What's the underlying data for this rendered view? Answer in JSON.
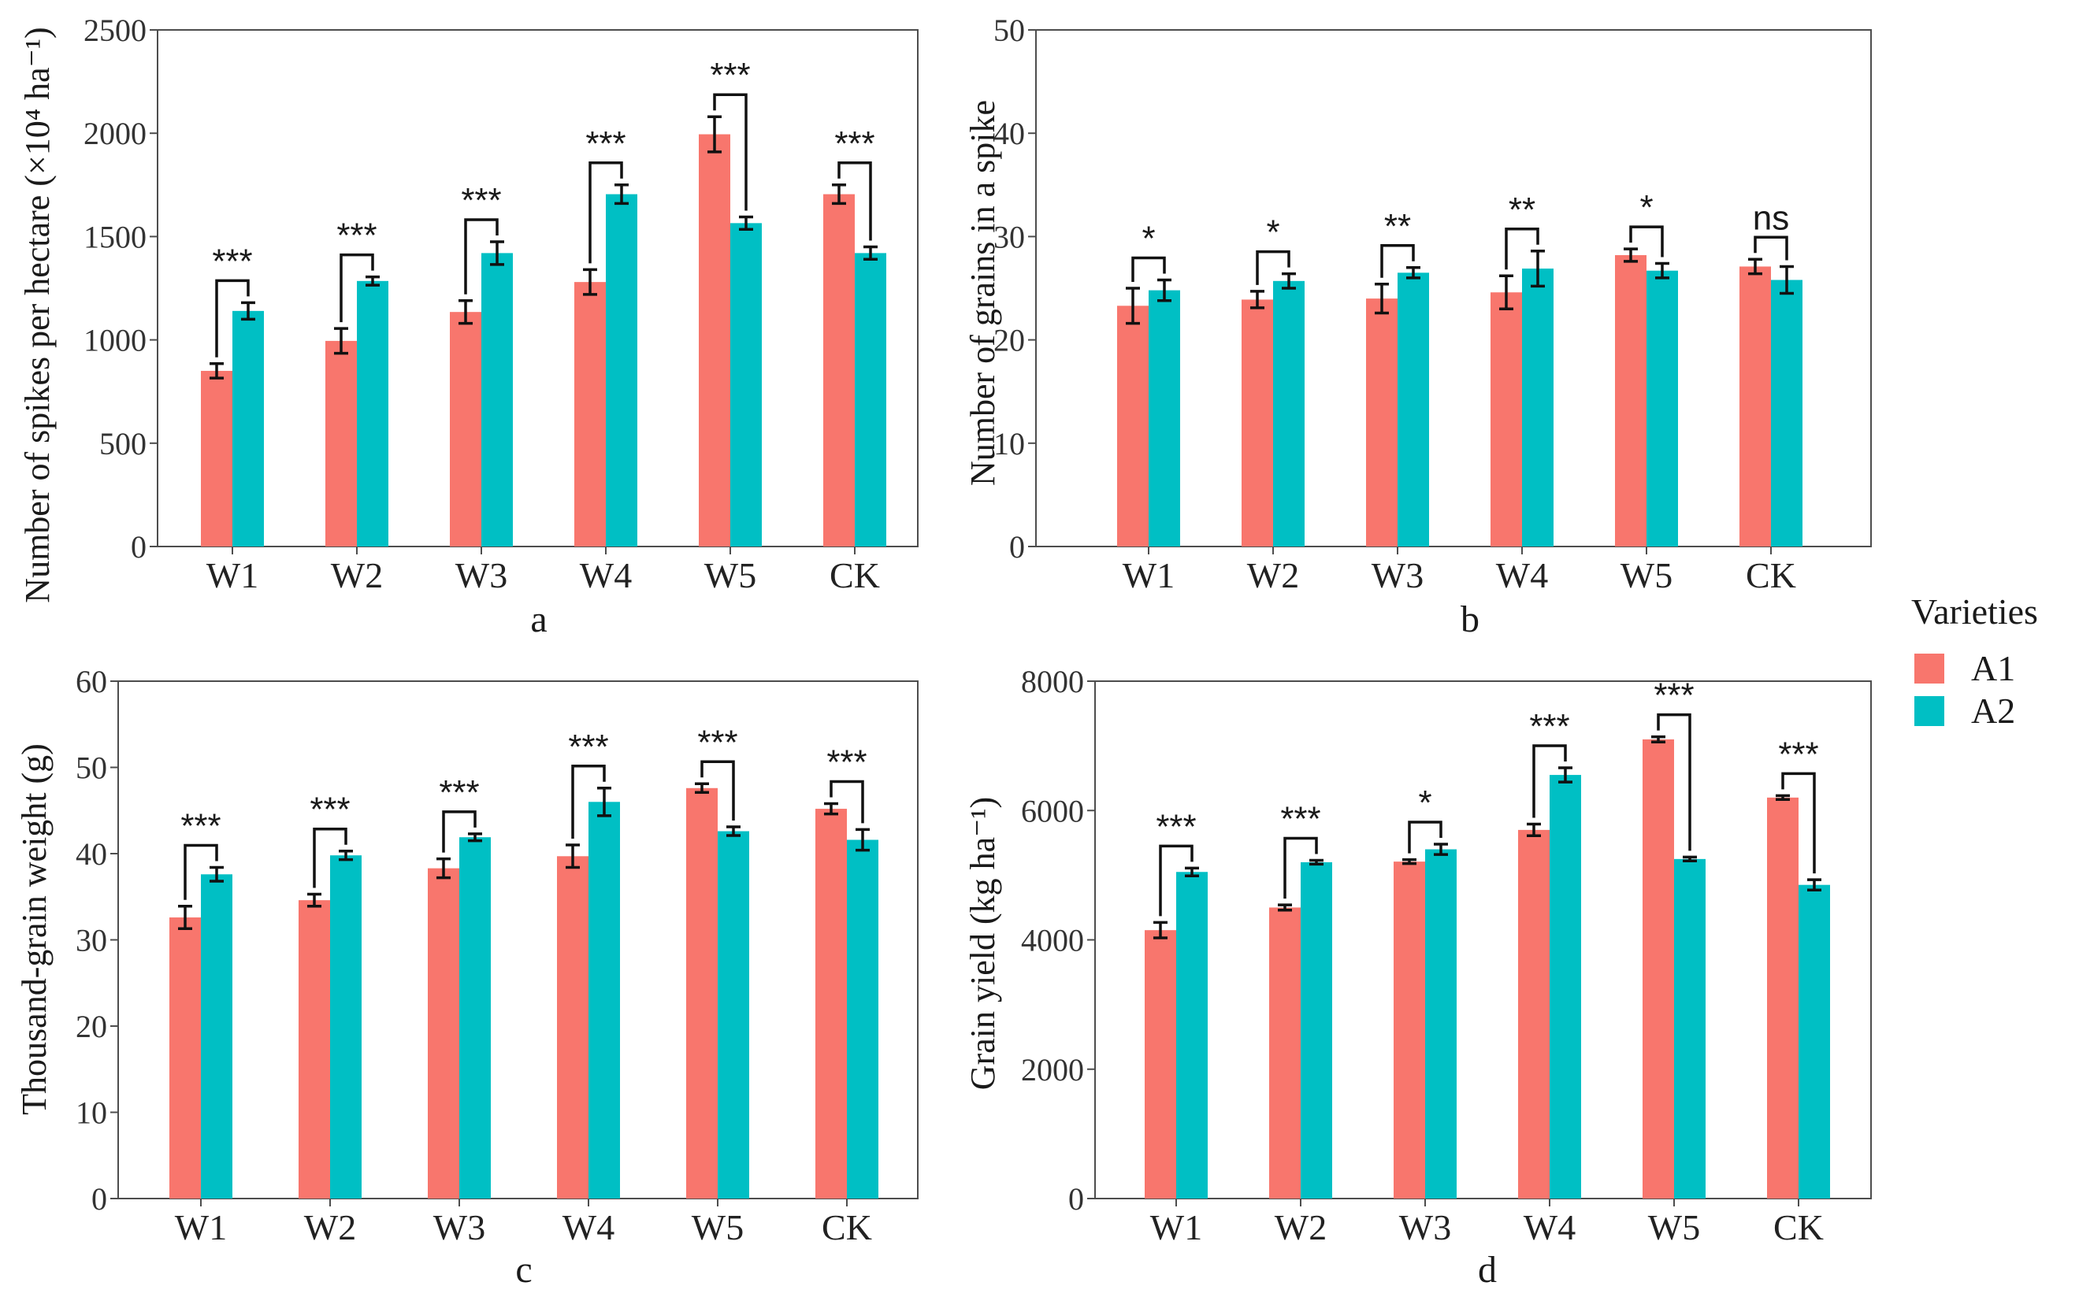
{
  "figure": {
    "colors": {
      "A1": "#F8766D",
      "A2": "#00BFC4"
    },
    "legend": {
      "title": "Varieties",
      "items": [
        "A1",
        "A2"
      ]
    }
  },
  "chart_data": [
    {
      "type": "bar",
      "panel": "a",
      "ylabel": "Number of spikes per hectare (×10⁴ ha⁻¹)",
      "ylim": [
        0,
        2500
      ],
      "yticks": [
        0,
        500,
        1000,
        1500,
        2000,
        2500
      ],
      "categories": [
        "W1",
        "W2",
        "W3",
        "W4",
        "W5",
        "CK"
      ],
      "series": [
        {
          "name": "A1",
          "values": [
            850,
            995,
            1135,
            1280,
            1995,
            1705
          ],
          "errors": [
            35,
            60,
            55,
            60,
            85,
            45
          ]
        },
        {
          "name": "A2",
          "values": [
            1140,
            1285,
            1420,
            1705,
            1565,
            1420
          ],
          "errors": [
            40,
            20,
            55,
            45,
            30,
            30
          ]
        }
      ],
      "significance": [
        "***",
        "***",
        "***",
        "***",
        "***",
        "***"
      ]
    },
    {
      "type": "bar",
      "panel": "b",
      "ylabel": "Number of grains in a spike",
      "ylim": [
        0,
        50
      ],
      "yticks": [
        0,
        10,
        20,
        30,
        40,
        50
      ],
      "categories": [
        "W1",
        "W2",
        "W3",
        "W4",
        "W5",
        "CK"
      ],
      "series": [
        {
          "name": "A1",
          "values": [
            23.3,
            23.9,
            24.0,
            24.6,
            28.2,
            27.1
          ],
          "errors": [
            1.7,
            0.8,
            1.4,
            1.6,
            0.6,
            0.7
          ]
        },
        {
          "name": "A2",
          "values": [
            24.8,
            25.7,
            26.5,
            26.9,
            26.7,
            25.8
          ],
          "errors": [
            1.0,
            0.7,
            0.5,
            1.7,
            0.7,
            1.3
          ]
        }
      ],
      "significance": [
        "*",
        "*",
        "**",
        "**",
        "*",
        "ns"
      ]
    },
    {
      "type": "bar",
      "panel": "c",
      "ylabel": "Thousand-grain weight (g)",
      "ylim": [
        0,
        60
      ],
      "yticks": [
        0,
        10,
        20,
        30,
        40,
        50,
        60
      ],
      "categories": [
        "W1",
        "W2",
        "W3",
        "W4",
        "W5",
        "CK"
      ],
      "series": [
        {
          "name": "A1",
          "values": [
            32.6,
            34.6,
            38.3,
            39.7,
            47.6,
            45.2
          ],
          "errors": [
            1.3,
            0.7,
            1.1,
            1.3,
            0.5,
            0.6
          ]
        },
        {
          "name": "A2",
          "values": [
            37.6,
            39.8,
            41.9,
            46.0,
            42.6,
            41.6
          ],
          "errors": [
            0.8,
            0.5,
            0.4,
            1.6,
            0.5,
            1.2
          ]
        }
      ],
      "significance": [
        "***",
        "***",
        "***",
        "***",
        "***",
        "***"
      ]
    },
    {
      "type": "bar",
      "panel": "d",
      "ylabel": "Grain yield (kg ha⁻¹)",
      "ylim": [
        0,
        8000
      ],
      "yticks": [
        0,
        2000,
        4000,
        6000,
        8000
      ],
      "categories": [
        "W1",
        "W2",
        "W3",
        "W4",
        "W5",
        "CK"
      ],
      "series": [
        {
          "name": "A1",
          "values": [
            4150,
            4500,
            5210,
            5700,
            7100,
            6200
          ],
          "errors": [
            120,
            40,
            30,
            90,
            40,
            30
          ]
        },
        {
          "name": "A2",
          "values": [
            5050,
            5200,
            5400,
            6550,
            5250,
            4850
          ],
          "errors": [
            60,
            30,
            80,
            110,
            30,
            80
          ]
        }
      ],
      "significance": [
        "***",
        "***",
        "*",
        "***",
        "***",
        "***"
      ]
    }
  ]
}
